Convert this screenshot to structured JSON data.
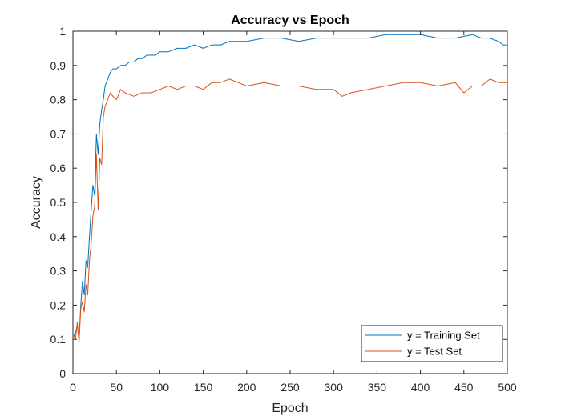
{
  "chart_data": {
    "type": "line",
    "title": "Accuracy vs Epoch",
    "xlabel": "Epoch",
    "ylabel": "Accuracy",
    "xlim": [
      0,
      500
    ],
    "ylim": [
      0,
      1
    ],
    "xticks": [
      0,
      50,
      100,
      150,
      200,
      250,
      300,
      350,
      400,
      450,
      500
    ],
    "yticks": [
      0,
      0.1,
      0.2,
      0.3,
      0.4,
      0.5,
      0.6,
      0.7,
      0.8,
      0.9,
      1
    ],
    "ytick_labels": [
      "0",
      "0.1",
      "0.2",
      "0.3",
      "0.4",
      "0.5",
      "0.6",
      "0.7",
      "0.8",
      "0.9",
      "1"
    ],
    "grid": false,
    "legend": "bottom-right",
    "series": [
      {
        "name": "y = Training Set",
        "color": "#0072BD",
        "x": [
          1,
          3,
          5,
          7,
          9,
          11,
          13,
          15,
          17,
          19,
          21,
          23,
          25,
          27,
          29,
          31,
          33,
          35,
          37,
          40,
          43,
          46,
          50,
          55,
          60,
          65,
          70,
          75,
          80,
          85,
          90,
          95,
          100,
          110,
          120,
          130,
          140,
          150,
          160,
          170,
          180,
          190,
          200,
          220,
          240,
          260,
          280,
          300,
          320,
          340,
          360,
          380,
          400,
          420,
          440,
          460,
          470,
          480,
          490,
          495,
          500
        ],
        "values": [
          0.11,
          0.12,
          0.14,
          0.1,
          0.2,
          0.27,
          0.23,
          0.33,
          0.31,
          0.4,
          0.48,
          0.55,
          0.52,
          0.7,
          0.64,
          0.73,
          0.77,
          0.8,
          0.84,
          0.86,
          0.88,
          0.89,
          0.89,
          0.9,
          0.9,
          0.91,
          0.91,
          0.92,
          0.92,
          0.93,
          0.93,
          0.93,
          0.94,
          0.94,
          0.95,
          0.95,
          0.96,
          0.95,
          0.96,
          0.96,
          0.97,
          0.97,
          0.97,
          0.98,
          0.98,
          0.97,
          0.98,
          0.98,
          0.98,
          0.98,
          0.99,
          0.99,
          0.99,
          0.98,
          0.98,
          0.99,
          0.98,
          0.98,
          0.97,
          0.96,
          0.96
        ]
      },
      {
        "name": "y = Test Set",
        "color": "#D95319",
        "x": [
          1,
          3,
          5,
          7,
          9,
          11,
          13,
          15,
          17,
          19,
          21,
          23,
          25,
          27,
          29,
          31,
          33,
          35,
          37,
          40,
          43,
          46,
          50,
          55,
          60,
          70,
          80,
          90,
          100,
          110,
          120,
          130,
          140,
          150,
          160,
          170,
          180,
          190,
          200,
          220,
          240,
          260,
          280,
          300,
          310,
          320,
          340,
          360,
          380,
          400,
          420,
          440,
          450,
          460,
          470,
          480,
          490,
          500
        ],
        "values": [
          0.11,
          0.1,
          0.15,
          0.09,
          0.19,
          0.21,
          0.18,
          0.26,
          0.23,
          0.33,
          0.38,
          0.46,
          0.49,
          0.64,
          0.48,
          0.63,
          0.61,
          0.75,
          0.78,
          0.8,
          0.82,
          0.81,
          0.8,
          0.83,
          0.82,
          0.81,
          0.82,
          0.82,
          0.83,
          0.84,
          0.83,
          0.84,
          0.84,
          0.83,
          0.85,
          0.85,
          0.86,
          0.85,
          0.84,
          0.85,
          0.84,
          0.84,
          0.83,
          0.83,
          0.81,
          0.82,
          0.83,
          0.84,
          0.85,
          0.85,
          0.84,
          0.85,
          0.82,
          0.84,
          0.84,
          0.86,
          0.85,
          0.85
        ]
      }
    ]
  }
}
